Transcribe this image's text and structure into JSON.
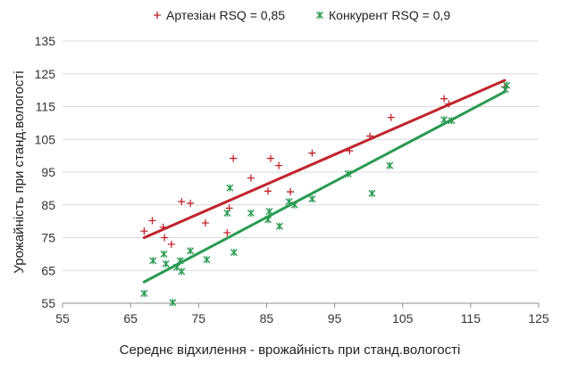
{
  "chart_data": {
    "type": "scatter",
    "title": "",
    "xlabel": "Середнє відхилення - врожайність при станд.вологості",
    "ylabel": "Урожайність при станд.вологості",
    "xlim": [
      55,
      125
    ],
    "ylim": [
      55,
      135
    ],
    "x_ticks": [
      "55",
      "65",
      "75",
      "85",
      "95",
      "105",
      "115",
      "125"
    ],
    "y_ticks": [
      "55",
      "65",
      "75",
      "85",
      "95",
      "105",
      "115",
      "125",
      "135"
    ],
    "grid": "horizontal",
    "legend_position": "top",
    "series": [
      {
        "name": "Артезіан RSQ = 0,85",
        "marker": "plus",
        "color": "#c0242b",
        "points": [
          [
            67,
            77
          ],
          [
            68.2,
            80.2
          ],
          [
            69.8,
            78.2
          ],
          [
            70,
            75
          ],
          [
            71,
            73
          ],
          [
            72.5,
            86
          ],
          [
            73.8,
            85.5
          ],
          [
            76,
            79.5
          ],
          [
            79.2,
            76.5
          ],
          [
            79.5,
            84
          ],
          [
            80.1,
            99.2
          ],
          [
            82.7,
            93.2
          ],
          [
            85.2,
            89.2
          ],
          [
            85.6,
            99.2
          ],
          [
            86.8,
            97
          ],
          [
            88.5,
            89
          ],
          [
            91.7,
            100.8
          ],
          [
            97.2,
            101.5
          ],
          [
            100.2,
            106
          ],
          [
            103.3,
            111.7
          ],
          [
            111.1,
            117.4
          ],
          [
            111.8,
            115.8
          ],
          [
            120,
            121
          ]
        ],
        "trendline": [
          [
            67,
            75
          ],
          [
            120,
            123
          ]
        ]
      },
      {
        "name": "Конкурент RSQ = 0,9",
        "marker": "star",
        "color": "#2a9a52",
        "points": [
          [
            67,
            58
          ],
          [
            68.3,
            68
          ],
          [
            69.9,
            70
          ],
          [
            70.2,
            67
          ],
          [
            71.2,
            55.2
          ],
          [
            71.8,
            66
          ],
          [
            72.3,
            68
          ],
          [
            72.5,
            64.7
          ],
          [
            73.8,
            71
          ],
          [
            76.2,
            68.3
          ],
          [
            79.2,
            82.5
          ],
          [
            79.6,
            90.2
          ],
          [
            80.2,
            70.5
          ],
          [
            82.7,
            82.5
          ],
          [
            85.2,
            80.5
          ],
          [
            85.4,
            83
          ],
          [
            86.9,
            78.5
          ],
          [
            88.3,
            86
          ],
          [
            89.1,
            85
          ],
          [
            91.7,
            86.8
          ],
          [
            97,
            94.5
          ],
          [
            100.5,
            88.5
          ],
          [
            103.1,
            97
          ],
          [
            111.1,
            111
          ],
          [
            112.2,
            110.7
          ],
          [
            120.1,
            120.2
          ],
          [
            120.3,
            121.5
          ]
        ],
        "trendline": [
          [
            67,
            61.5
          ],
          [
            120,
            119.5
          ]
        ]
      }
    ]
  }
}
